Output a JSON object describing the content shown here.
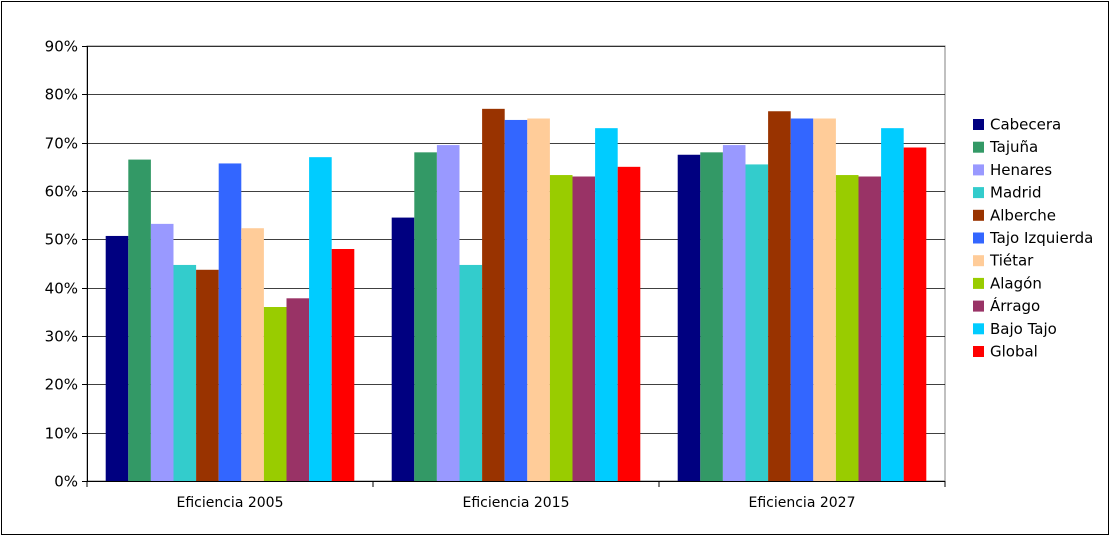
{
  "chart_data": {
    "type": "bar",
    "categories": [
      "Eficiencia 2005",
      "Eficiencia 2015",
      "Eficiencia 2027"
    ],
    "ylim": [
      0,
      90
    ],
    "y_ticks": [
      "0%",
      "10%",
      "20%",
      "30%",
      "40%",
      "50%",
      "60%",
      "70%",
      "80%",
      "90%"
    ],
    "grid": true,
    "legend": "right",
    "series": [
      {
        "name": "Cabecera",
        "color": "#000080",
        "values": [
          50.7,
          54.5,
          67.5
        ]
      },
      {
        "name": "Tajuña",
        "color": "#339966",
        "values": [
          66.5,
          68.0,
          68.0
        ]
      },
      {
        "name": "Henares",
        "color": "#9999FF",
        "values": [
          53.2,
          69.5,
          69.5
        ]
      },
      {
        "name": "Madrid",
        "color": "#33CCCC",
        "values": [
          44.7,
          44.7,
          65.5
        ]
      },
      {
        "name": "Alberche",
        "color": "#993300",
        "values": [
          43.7,
          77.0,
          76.5
        ]
      },
      {
        "name": "Tajo Izquierda",
        "color": "#3366FF",
        "values": [
          65.7,
          74.7,
          75.0
        ]
      },
      {
        "name": "Tiétar",
        "color": "#FFCC99",
        "values": [
          52.3,
          75.0,
          75.0
        ]
      },
      {
        "name": "Alagón",
        "color": "#99CC00",
        "values": [
          36.0,
          63.3,
          63.3
        ]
      },
      {
        "name": "Árrago",
        "color": "#993366",
        "values": [
          37.8,
          63.0,
          63.0
        ]
      },
      {
        "name": "Bajo Tajo",
        "color": "#00CCFF",
        "values": [
          67.0,
          73.0,
          73.0
        ]
      },
      {
        "name": "Global",
        "color": "#FF0000",
        "values": [
          48.0,
          65.0,
          69.0
        ]
      }
    ]
  }
}
